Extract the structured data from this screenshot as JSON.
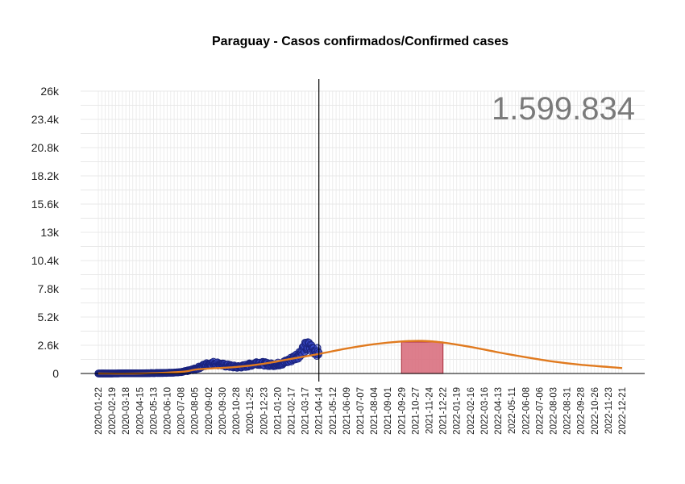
{
  "chart_data": {
    "type": "line",
    "title": "Paraguay - Casos confirmados/Confirmed cases",
    "annotation_total": "1.599.834",
    "xlabel": "",
    "ylabel": "",
    "ylim": [
      0,
      26000
    ],
    "yticks": [
      0,
      2600,
      5200,
      7800,
      10400,
      13000,
      15600,
      18200,
      20800,
      23400,
      26000
    ],
    "ytick_labels": [
      "0",
      "2.6k",
      "5.2k",
      "7.8k",
      "10.4k",
      "13k",
      "15.6k",
      "18.2k",
      "20.8k",
      "23.4k",
      "26k"
    ],
    "x_start": "2020-01-22",
    "x_end": "2022-12-21",
    "x_ticks": [
      "2020-01-22",
      "2020-02-19",
      "2020-03-18",
      "2020-04-15",
      "2020-05-13",
      "2020-06-10",
      "2020-07-08",
      "2020-08-05",
      "2020-09-02",
      "2020-09-30",
      "2020-10-28",
      "2020-11-25",
      "2020-12-23",
      "2021-01-20",
      "2021-02-17",
      "2021-03-17",
      "2021-04-14",
      "2021-05-12",
      "2021-06-09",
      "2021-07-07",
      "2021-08-04",
      "2021-09-01",
      "2021-09-29",
      "2021-10-27",
      "2021-11-24",
      "2021-12-22",
      "2022-01-19",
      "2022-02-16",
      "2022-03-16",
      "2022-04-13",
      "2022-05-11",
      "2022-06-08",
      "2022-07-06",
      "2022-08-03",
      "2022-08-31",
      "2022-09-28",
      "2022-10-26",
      "2022-11-23",
      "2022-12-21"
    ],
    "vertical_line_date": "2021-04-14",
    "peak_band": {
      "start": "2021-09-29",
      "end": "2021-12-22",
      "value": 2900
    },
    "series": [
      {
        "type": "scatter",
        "points": [
          [
            "2020-01-22",
            0
          ],
          [
            "2020-02-19",
            0
          ],
          [
            "2020-03-18",
            20
          ],
          [
            "2020-04-15",
            15
          ],
          [
            "2020-05-13",
            40
          ],
          [
            "2020-06-10",
            60
          ],
          [
            "2020-07-08",
            120
          ],
          [
            "2020-07-22",
            250
          ],
          [
            "2020-08-05",
            400
          ],
          [
            "2020-08-19",
            650
          ],
          [
            "2020-09-02",
            900
          ],
          [
            "2020-09-16",
            950
          ],
          [
            "2020-09-30",
            800
          ],
          [
            "2020-10-14",
            700
          ],
          [
            "2020-10-28",
            600
          ],
          [
            "2020-11-11",
            650
          ],
          [
            "2020-11-25",
            800
          ],
          [
            "2020-12-09",
            1000
          ],
          [
            "2020-12-23",
            900
          ],
          [
            "2021-01-06",
            800
          ],
          [
            "2021-01-20",
            850
          ],
          [
            "2021-02-03",
            1000
          ],
          [
            "2021-02-17",
            1300
          ],
          [
            "2021-03-03",
            1700
          ],
          [
            "2021-03-10",
            2100
          ],
          [
            "2021-03-17",
            2400
          ],
          [
            "2021-03-24",
            2500
          ],
          [
            "2021-03-31",
            2300
          ],
          [
            "2021-04-07",
            2100
          ],
          [
            "2021-04-14",
            1900
          ]
        ]
      },
      {
        "type": "line",
        "points": [
          [
            "2020-01-22",
            0
          ],
          [
            "2020-04-15",
            0
          ],
          [
            "2020-07-08",
            150
          ],
          [
            "2020-08-05",
            350
          ],
          [
            "2020-09-02",
            450
          ],
          [
            "2020-10-28",
            600
          ],
          [
            "2020-12-23",
            900
          ],
          [
            "2021-02-17",
            1350
          ],
          [
            "2021-04-14",
            1800
          ],
          [
            "2021-06-09",
            2300
          ],
          [
            "2021-08-04",
            2700
          ],
          [
            "2021-09-29",
            2950
          ],
          [
            "2021-11-10",
            3000
          ],
          [
            "2021-12-22",
            2850
          ],
          [
            "2022-02-16",
            2450
          ],
          [
            "2022-04-13",
            1950
          ],
          [
            "2022-06-08",
            1500
          ],
          [
            "2022-08-03",
            1100
          ],
          [
            "2022-09-28",
            800
          ],
          [
            "2022-11-23",
            600
          ],
          [
            "2022-12-21",
            500
          ]
        ]
      }
    ],
    "colors": {
      "scatter_fill": "#3b4bc8",
      "scatter_stroke": "#1a237e",
      "fit_line": "#e07a1f",
      "band_fill": "#d9707f",
      "band_stroke": "#b03a48",
      "grid": "#e8e8e8",
      "axis": "#000000"
    }
  }
}
